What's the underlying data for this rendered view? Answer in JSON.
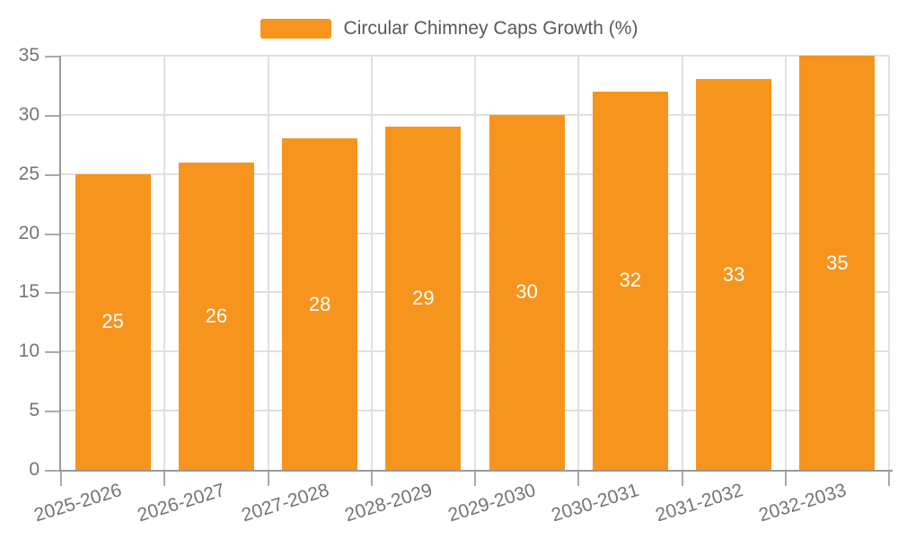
{
  "legend": {
    "label": "Circular Chimney Caps Growth (%)"
  },
  "chart_data": {
    "type": "bar",
    "title": "",
    "legend": [
      "Circular Chimney Caps Growth (%)"
    ],
    "legend_position": "top-center",
    "categories": [
      "2025-2026",
      "2026-2027",
      "2027-2028",
      "2028-2029",
      "2029-2030",
      "2030-2031",
      "2031-2032",
      "2032-2033"
    ],
    "values": [
      25,
      26,
      28,
      29,
      30,
      32,
      33,
      35
    ],
    "xlabel": "",
    "ylabel": "",
    "ylim": [
      0,
      35
    ],
    "yticks": [
      0,
      5,
      10,
      15,
      20,
      25,
      30,
      35
    ],
    "grid": true,
    "bar_label_position": "inside-center",
    "x_tick_rotation_deg": 17
  },
  "colors": {
    "bar": "#F7941E",
    "grid": "#E0E0E0",
    "axis": "#999999",
    "tick": "#AAAAAA",
    "axis_label": "#757575",
    "legend_text": "#595959",
    "bar_value_label": "#FFFFFF",
    "background": "#FFFFFF"
  }
}
